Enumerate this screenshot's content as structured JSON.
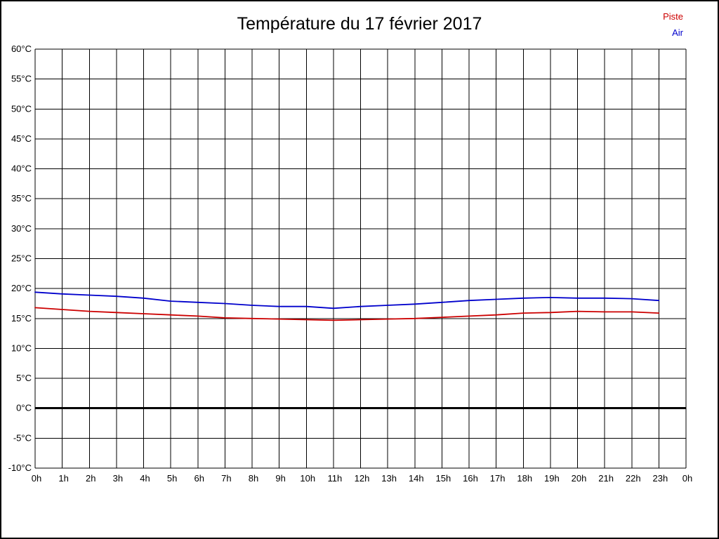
{
  "title": "Température du 17 février 2017",
  "legend": {
    "piste": {
      "label": "Piste",
      "color": "#cc0000"
    },
    "air": {
      "label": "Air",
      "color": "#0000cc"
    }
  },
  "chart_data": {
    "type": "line",
    "title": "Température du 17 février 2017",
    "x_labels": [
      "0h",
      "1h",
      "2h",
      "3h",
      "4h",
      "5h",
      "6h",
      "7h",
      "8h",
      "9h",
      "10h",
      "11h",
      "12h",
      "13h",
      "14h",
      "15h",
      "16h",
      "17h",
      "18h",
      "19h",
      "20h",
      "21h",
      "22h",
      "23h",
      "0h"
    ],
    "y_tick_labels": [
      "60°C",
      "55°C",
      "50°C",
      "45°C",
      "40°C",
      "35°C",
      "30°C",
      "25°C",
      "20°C",
      "15°C",
      "10°C",
      "5°C",
      "0°C",
      "-5°C",
      "-10°C"
    ],
    "ylim": [
      -10,
      60
    ],
    "y_tick_step": 5,
    "grid": true,
    "zero_line_value": 0,
    "legend_position": "top-right",
    "xlabel": "",
    "ylabel": "",
    "series": [
      {
        "name": "Piste",
        "color": "#cc0000",
        "values": [
          16.8,
          16.5,
          16.2,
          16.0,
          15.8,
          15.6,
          15.4,
          15.1,
          15.0,
          14.9,
          14.8,
          14.7,
          14.8,
          14.9,
          15.0,
          15.2,
          15.4,
          15.6,
          15.9,
          16.0,
          16.2,
          16.1,
          16.1,
          15.9
        ]
      },
      {
        "name": "Air",
        "color": "#0000cc",
        "values": [
          19.4,
          19.1,
          18.9,
          18.7,
          18.4,
          17.9,
          17.7,
          17.5,
          17.2,
          17.0,
          17.0,
          16.7,
          17.0,
          17.2,
          17.4,
          17.7,
          18.0,
          18.2,
          18.4,
          18.5,
          18.4,
          18.4,
          18.3,
          18.0
        ]
      }
    ]
  }
}
